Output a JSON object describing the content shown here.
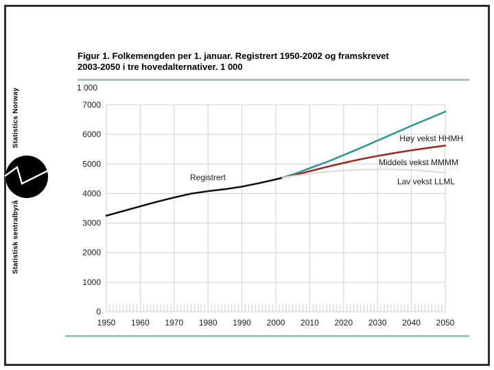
{
  "page": {
    "title_line1": "Figur 1. Folkemengden per 1. januar. Registrert 1950-2002 og framskrevet",
    "title_line2": "2003-2050 i tre hovedalternativer. 1 000",
    "unit_label": "1 000"
  },
  "sidebar": {
    "top_label": "Statistics Norway",
    "bottom_label": "Statistisk sentralbyrå",
    "logo_icon": "ssb-circle-zigzag-logo"
  },
  "colors": {
    "accent_rule": "#9cc8c4",
    "border": "#2d2d2d",
    "gridline": "#cfcfcf",
    "text": "#1a1a1a"
  },
  "chart_data": {
    "type": "line",
    "title": "Figur 1. Folkemengden per 1. januar. Registrert 1950-2002 og framskrevet 2003-2050 i tre hovedalternativer. 1 000",
    "unit": "1 000",
    "xlabel": "",
    "ylabel": "1 000",
    "xlim": [
      1950,
      2050
    ],
    "ylim": [
      0,
      7000
    ],
    "x_ticks": [
      1950,
      1960,
      1970,
      1980,
      1990,
      2000,
      2010,
      2020,
      2030,
      2040,
      2050
    ],
    "y_ticks": [
      0,
      1000,
      2000,
      3000,
      4000,
      5000,
      6000,
      7000
    ],
    "minor_x_tick_every_years": 1,
    "grid": true,
    "legend_position": "inline-right",
    "series": [
      {
        "name": "Registrert",
        "color": "#111111",
        "width": 2.6,
        "points": [
          [
            1950,
            3250
          ],
          [
            1955,
            3408
          ],
          [
            1960,
            3568
          ],
          [
            1965,
            3723
          ],
          [
            1970,
            3863
          ],
          [
            1975,
            3997
          ],
          [
            1980,
            4079
          ],
          [
            1985,
            4146
          ],
          [
            1990,
            4233
          ],
          [
            1995,
            4348
          ],
          [
            2000,
            4478
          ],
          [
            2002,
            4538
          ]
        ]
      },
      {
        "name": "Høy vekst HHMH",
        "color": "#2f9a92",
        "width": 2.6,
        "points": [
          [
            2002,
            4538
          ],
          [
            2005,
            4640
          ],
          [
            2010,
            4855
          ],
          [
            2015,
            5065
          ],
          [
            2020,
            5300
          ],
          [
            2025,
            5540
          ],
          [
            2030,
            5790
          ],
          [
            2035,
            6040
          ],
          [
            2040,
            6290
          ],
          [
            2045,
            6530
          ],
          [
            2050,
            6770
          ]
        ]
      },
      {
        "name": "Middels vekst MMMM",
        "color": "#9c2a21",
        "width": 2.6,
        "points": [
          [
            2002,
            4538
          ],
          [
            2005,
            4610
          ],
          [
            2010,
            4755
          ],
          [
            2015,
            4900
          ],
          [
            2020,
            5035
          ],
          [
            2025,
            5160
          ],
          [
            2030,
            5270
          ],
          [
            2035,
            5370
          ],
          [
            2040,
            5460
          ],
          [
            2045,
            5545
          ],
          [
            2050,
            5620
          ]
        ]
      },
      {
        "name": "Lav vekst LLML",
        "color": "#dcdcdc",
        "width": 2.2,
        "points": [
          [
            2002,
            4538
          ],
          [
            2005,
            4590
          ],
          [
            2010,
            4670
          ],
          [
            2015,
            4730
          ],
          [
            2020,
            4780
          ],
          [
            2025,
            4805
          ],
          [
            2030,
            4815
          ],
          [
            2035,
            4815
          ],
          [
            2040,
            4795
          ],
          [
            2045,
            4755
          ],
          [
            2050,
            4705
          ]
        ]
      }
    ]
  }
}
